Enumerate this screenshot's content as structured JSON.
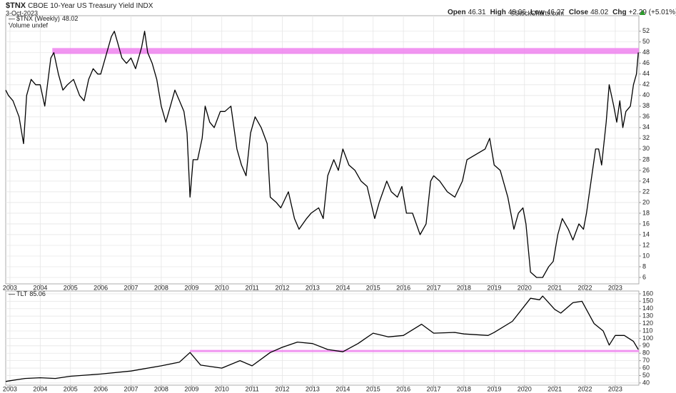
{
  "header": {
    "symbol": "$TNX",
    "name": "CBOE 10-Year US Treasury Yield INDX",
    "date": "3-Oct-2023",
    "quote": [
      {
        "label": "Open",
        "value": 46.31
      },
      {
        "label": "High",
        "value": 48.06
      },
      {
        "label": "Low",
        "value": 46.27
      },
      {
        "label": "Close",
        "value": 48.02
      }
    ],
    "change_label": "Chg",
    "change": "+2.29 (+5.01%)",
    "credit": "©StockCharts.com",
    "volume_note": "Volume undef"
  },
  "chart_data": [
    {
      "type": "line",
      "xlim": [
        2002.86,
        2023.78
      ],
      "ylim": [
        4.8,
        54.9
      ],
      "xticks": [
        2003,
        2004,
        2005,
        2006,
        2007,
        2008,
        2009,
        2010,
        2011,
        2012,
        2013,
        2014,
        2015,
        2016,
        2017,
        2018,
        2019,
        2020,
        2021,
        2022,
        2023
      ],
      "yticks": [
        6,
        8,
        10,
        12,
        14,
        16,
        18,
        20,
        22,
        24,
        26,
        28,
        30,
        32,
        34,
        36,
        38,
        40,
        42,
        44,
        46,
        48,
        50,
        52
      ],
      "grid": true,
      "levels": [
        {
          "value": 48.3,
          "from": 2004.4,
          "color": "#ee82ee"
        }
      ],
      "series": [
        {
          "name": "$TNX (Weekly)",
          "color": "#000000",
          "x": [
            2002.86,
            2002.95,
            2003.1,
            2003.3,
            2003.45,
            2003.55,
            2003.7,
            2003.85,
            2004.0,
            2004.15,
            2004.35,
            2004.45,
            2004.6,
            2004.75,
            2004.9,
            2005.1,
            2005.3,
            2005.45,
            2005.6,
            2005.75,
            2005.9,
            2006.0,
            2006.15,
            2006.35,
            2006.45,
            2006.55,
            2006.7,
            2006.85,
            2007.0,
            2007.15,
            2007.35,
            2007.45,
            2007.55,
            2007.7,
            2007.85,
            2008.0,
            2008.15,
            2008.35,
            2008.45,
            2008.6,
            2008.75,
            2008.85,
            2008.95,
            2009.05,
            2009.2,
            2009.35,
            2009.45,
            2009.6,
            2009.75,
            2009.95,
            2010.1,
            2010.3,
            2010.5,
            2010.65,
            2010.8,
            2010.95,
            2011.1,
            2011.3,
            2011.5,
            2011.6,
            2011.8,
            2011.95,
            2012.2,
            2012.4,
            2012.55,
            2012.8,
            2012.95,
            2013.2,
            2013.35,
            2013.5,
            2013.7,
            2013.85,
            2014.0,
            2014.2,
            2014.4,
            2014.6,
            2014.8,
            2015.05,
            2015.2,
            2015.45,
            2015.6,
            2015.8,
            2015.95,
            2016.1,
            2016.3,
            2016.55,
            2016.75,
            2016.9,
            2017.0,
            2017.2,
            2017.45,
            2017.7,
            2017.95,
            2018.1,
            2018.4,
            2018.7,
            2018.85,
            2019.0,
            2019.2,
            2019.45,
            2019.65,
            2019.8,
            2019.95,
            2020.05,
            2020.2,
            2020.4,
            2020.6,
            2020.8,
            2020.95,
            2021.1,
            2021.25,
            2021.45,
            2021.6,
            2021.8,
            2021.95,
            2022.05,
            2022.2,
            2022.35,
            2022.45,
            2022.55,
            2022.7,
            2022.8,
            2022.95,
            2023.05,
            2023.15,
            2023.25,
            2023.35,
            2023.5,
            2023.6,
            2023.7,
            2023.76
          ],
          "values": [
            41,
            40,
            39,
            36,
            31,
            40,
            43,
            42,
            42,
            38,
            47,
            48,
            44,
            41,
            42,
            43,
            40,
            39,
            43,
            45,
            44,
            44,
            47,
            51,
            52,
            50,
            47,
            46,
            47,
            45,
            49,
            52,
            48,
            46,
            43,
            38,
            35,
            39,
            41,
            39,
            37,
            33,
            21,
            28,
            28,
            32,
            38,
            35,
            34,
            37,
            37,
            38,
            30,
            27,
            25,
            33,
            36,
            34,
            31,
            21,
            20,
            19,
            22,
            17,
            15,
            17,
            18,
            19,
            17,
            25,
            28,
            26,
            30,
            27,
            26,
            24,
            23,
            17,
            20,
            24,
            22,
            21,
            23,
            18,
            18,
            14,
            16,
            24,
            25,
            24,
            22,
            21,
            24,
            28,
            29,
            30,
            32,
            27,
            26,
            21,
            15,
            18,
            19,
            16,
            7,
            6,
            6,
            8,
            9,
            14,
            17,
            15,
            13,
            16,
            15,
            18,
            24,
            30,
            30,
            27,
            35,
            42,
            38,
            35,
            39,
            34,
            37,
            38,
            42,
            44,
            48.02
          ]
        }
      ]
    },
    {
      "type": "line",
      "xlim": [
        2002.86,
        2023.78
      ],
      "ylim": [
        37,
        163.8
      ],
      "xticks": [
        2003,
        2004,
        2005,
        2006,
        2007,
        2008,
        2009,
        2010,
        2011,
        2012,
        2013,
        2014,
        2015,
        2016,
        2017,
        2018,
        2019,
        2020,
        2021,
        2022,
        2023
      ],
      "yticks": [
        40,
        50,
        60,
        70,
        80,
        90,
        100,
        110,
        120,
        130,
        140,
        150,
        160
      ],
      "grid": true,
      "levels": [
        {
          "value": 83,
          "from": 2008.95,
          "color": "#ee82ee"
        }
      ],
      "series": [
        {
          "name": "TLT",
          "color": "#000000",
          "x": [
            2002.86,
            2003.0,
            2003.5,
            2004.0,
            2004.5,
            2005.0,
            2006.0,
            2007.0,
            2008.0,
            2008.6,
            2008.95,
            2009.3,
            2010.0,
            2010.6,
            2011.0,
            2011.6,
            2012.0,
            2012.5,
            2013.0,
            2013.5,
            2014.0,
            2014.5,
            2015.0,
            2015.5,
            2016.0,
            2016.6,
            2017.0,
            2017.7,
            2018.0,
            2018.8,
            2019.0,
            2019.6,
            2020.2,
            2020.5,
            2020.6,
            2021.0,
            2021.2,
            2021.6,
            2021.9,
            2022.3,
            2022.6,
            2022.8,
            2023.0,
            2023.3,
            2023.6,
            2023.76
          ],
          "values": [
            42,
            43,
            46,
            47,
            46,
            49,
            52,
            56,
            63,
            68,
            81,
            64,
            60,
            70,
            63,
            81,
            88,
            95,
            93,
            85,
            82,
            93,
            107,
            102,
            104,
            119,
            107,
            108,
            106,
            104,
            108,
            123,
            154,
            152,
            157,
            139,
            134,
            148,
            150,
            120,
            110,
            91,
            104,
            104,
            96,
            85.06
          ]
        }
      ]
    }
  ]
}
